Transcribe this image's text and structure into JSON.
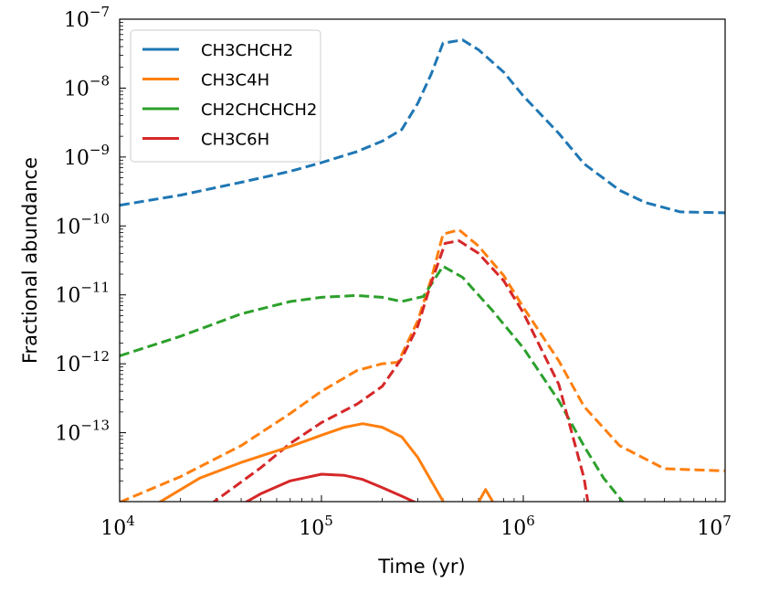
{
  "chart_data": {
    "type": "line",
    "xscale": "log",
    "yscale": "log",
    "xlabel": "Time (yr)",
    "ylabel": "Fractional abundance",
    "xlim": [
      10000,
      10000000
    ],
    "ylim": [
      1e-14,
      1e-07
    ],
    "x_ticks": [
      {
        "value": 10000,
        "base": "10",
        "exp": "4"
      },
      {
        "value": 100000,
        "base": "10",
        "exp": "5"
      },
      {
        "value": 1000000,
        "base": "10",
        "exp": "6"
      },
      {
        "value": 10000000,
        "base": "10",
        "exp": "7"
      }
    ],
    "y_ticks": [
      {
        "value": 1e-13,
        "base": "10",
        "exp": "−13"
      },
      {
        "value": 1e-12,
        "base": "10",
        "exp": "−12"
      },
      {
        "value": 1e-11,
        "base": "10",
        "exp": "−11"
      },
      {
        "value": 1e-10,
        "base": "10",
        "exp": "−10"
      },
      {
        "value": 1e-09,
        "base": "10",
        "exp": "−9"
      },
      {
        "value": 1e-08,
        "base": "10",
        "exp": "−8"
      },
      {
        "value": 1e-07,
        "base": "10",
        "exp": "−7"
      }
    ],
    "legend": {
      "location": "upper-left",
      "entries": [
        {
          "name": "CH3CHCH2",
          "color": "#1f77b4"
        },
        {
          "name": "CH3C4H",
          "color": "#ff7f0e"
        },
        {
          "name": "CH2CHCHCH2",
          "color": "#2ca02c"
        },
        {
          "name": "CH3C6H",
          "color": "#d62728"
        }
      ]
    },
    "series": [
      {
        "name": "CH3CHCH2",
        "style": "dashed",
        "color": "#1f77b4",
        "points": [
          [
            10000,
            2e-10
          ],
          [
            20000,
            2.8e-10
          ],
          [
            40000,
            4.3e-10
          ],
          [
            70000,
            6.2e-10
          ],
          [
            100000,
            8.3e-10
          ],
          [
            150000,
            1.2e-09
          ],
          [
            200000,
            1.7e-09
          ],
          [
            250000,
            2.5e-09
          ],
          [
            300000,
            6e-09
          ],
          [
            350000,
            1.6e-08
          ],
          [
            400000,
            4.5e-08
          ],
          [
            500000,
            5e-08
          ],
          [
            600000,
            3.6e-08
          ],
          [
            800000,
            1.7e-08
          ],
          [
            1000000,
            7.7e-09
          ],
          [
            1500000,
            2.2e-09
          ],
          [
            2000000,
            8e-10
          ],
          [
            3000000,
            3.3e-10
          ],
          [
            4000000,
            2.2e-10
          ],
          [
            6000000,
            1.6e-10
          ],
          [
            10000000,
            1.55e-10
          ]
        ]
      },
      {
        "name": "CH3C4H",
        "style": "dashed",
        "color": "#ff7f0e",
        "points": [
          [
            10000,
            9.8e-15
          ],
          [
            20000,
            2.3e-14
          ],
          [
            40000,
            6.5e-14
          ],
          [
            70000,
            1.9e-13
          ],
          [
            100000,
            4e-13
          ],
          [
            150000,
            8e-13
          ],
          [
            200000,
            1e-12
          ],
          [
            240000,
            1.05e-12
          ],
          [
            300000,
            4.2e-12
          ],
          [
            350000,
            1.7e-11
          ],
          [
            400000,
            7.6e-11
          ],
          [
            480000,
            8.8e-11
          ],
          [
            600000,
            5.1e-11
          ],
          [
            800000,
            1.9e-11
          ],
          [
            1000000,
            6.6e-12
          ],
          [
            1500000,
            1.1e-12
          ],
          [
            2000000,
            2.4e-13
          ],
          [
            3000000,
            6.5e-14
          ],
          [
            5000000,
            3e-14
          ],
          [
            10000000,
            2.8e-14
          ]
        ]
      },
      {
        "name": "CH2CHCHCH2",
        "style": "dashed",
        "color": "#2ca02c",
        "points": [
          [
            10000,
            1.3e-12
          ],
          [
            20000,
            2.5e-12
          ],
          [
            40000,
            5.3e-12
          ],
          [
            70000,
            8e-12
          ],
          [
            100000,
            9.2e-12
          ],
          [
            150000,
            9.8e-12
          ],
          [
            200000,
            9.2e-12
          ],
          [
            250000,
            8e-12
          ],
          [
            320000,
            9.5e-12
          ],
          [
            400000,
            2.6e-11
          ],
          [
            500000,
            1.8e-11
          ],
          [
            700000,
            6e-12
          ],
          [
            1000000,
            1.7e-12
          ],
          [
            1500000,
            2.9e-13
          ],
          [
            2000000,
            6.4e-14
          ],
          [
            2500000,
            2.2e-14
          ],
          [
            3200000,
            9e-15
          ]
        ]
      },
      {
        "name": "CH3C6H",
        "style": "dashed",
        "color": "#d62728",
        "points": [
          [
            28000,
            9e-15
          ],
          [
            50000,
            3.1e-14
          ],
          [
            70000,
            7e-14
          ],
          [
            100000,
            1.4e-13
          ],
          [
            150000,
            2.6e-13
          ],
          [
            200000,
            4.7e-13
          ],
          [
            250000,
            1.2e-12
          ],
          [
            300000,
            3.5e-12
          ],
          [
            350000,
            1.5e-11
          ],
          [
            410000,
            5.6e-11
          ],
          [
            480000,
            6.1e-11
          ],
          [
            600000,
            4e-11
          ],
          [
            800000,
            1.6e-11
          ],
          [
            1000000,
            5.5e-12
          ],
          [
            1500000,
            5e-13
          ],
          [
            2000000,
            2.2e-14
          ],
          [
            2100000,
            9e-15
          ]
        ]
      },
      {
        "name": "CH3C4H",
        "style": "solid",
        "color": "#ff7f0e",
        "points": [
          [
            15000,
            9e-15
          ],
          [
            25000,
            2.2e-14
          ],
          [
            40000,
            3.7e-14
          ],
          [
            70000,
            6.3e-14
          ],
          [
            100000,
            9.2e-14
          ],
          [
            130000,
            1.2e-13
          ],
          [
            160000,
            1.35e-13
          ],
          [
            200000,
            1.2e-13
          ],
          [
            250000,
            8.7e-14
          ],
          [
            300000,
            4.4e-14
          ],
          [
            350000,
            2e-14
          ],
          [
            410000,
            9e-15
          ]
        ]
      },
      {
        "name": "CH3C4H",
        "style": "solid",
        "color": "#ff7f0e",
        "points": [
          [
            590000,
            9e-15
          ],
          [
            650000,
            1.5e-14
          ],
          [
            720000,
            9e-15
          ]
        ]
      },
      {
        "name": "CH3C6H",
        "style": "solid",
        "color": "#d62728",
        "points": [
          [
            40000,
            9e-15
          ],
          [
            50000,
            1.3e-14
          ],
          [
            70000,
            2e-14
          ],
          [
            100000,
            2.5e-14
          ],
          [
            130000,
            2.4e-14
          ],
          [
            160000,
            2.1e-14
          ],
          [
            200000,
            1.6e-14
          ],
          [
            250000,
            1.2e-14
          ],
          [
            310000,
            9e-15
          ]
        ]
      }
    ]
  }
}
